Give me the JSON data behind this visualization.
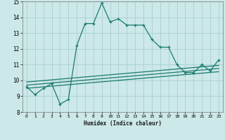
{
  "xlabel": "Humidex (Indice chaleur)",
  "xlim": [
    -0.5,
    23.5
  ],
  "ylim": [
    8,
    15
  ],
  "xticks": [
    0,
    1,
    2,
    3,
    4,
    5,
    6,
    7,
    8,
    9,
    10,
    11,
    12,
    13,
    14,
    15,
    16,
    17,
    18,
    19,
    20,
    21,
    22,
    23
  ],
  "yticks": [
    8,
    9,
    10,
    11,
    12,
    13,
    14,
    15
  ],
  "bg_color": "#cce8e8",
  "line_color": "#1a7a6e",
  "grid_color": "#aacfcf",
  "main_x": [
    0,
    1,
    2,
    3,
    4,
    5,
    6,
    7,
    8,
    9,
    10,
    11,
    12,
    13,
    14,
    15,
    16,
    17,
    18,
    19,
    20,
    21,
    22,
    23
  ],
  "main_y": [
    9.6,
    9.1,
    9.5,
    9.8,
    8.5,
    8.8,
    12.2,
    13.6,
    13.6,
    14.9,
    13.7,
    13.9,
    13.5,
    13.5,
    13.5,
    12.6,
    12.1,
    12.1,
    11.0,
    10.5,
    10.5,
    11.0,
    10.6,
    11.3
  ],
  "line1_x": [
    0,
    23
  ],
  "line1_y": [
    9.5,
    10.55
  ],
  "line2_x": [
    0,
    23
  ],
  "line2_y": [
    9.7,
    10.75
  ],
  "line3_x": [
    0,
    23
  ],
  "line3_y": [
    9.9,
    10.95
  ]
}
